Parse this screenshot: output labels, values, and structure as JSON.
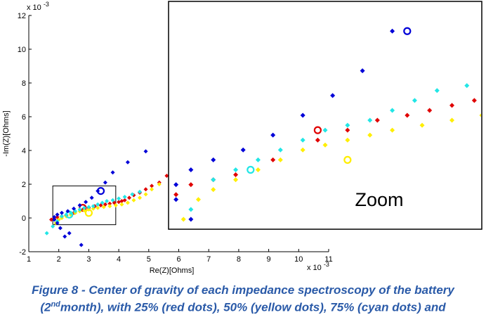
{
  "chart_data": {
    "type": "scatter",
    "xlabel": "Re(Z)[Ohms]",
    "ylabel": "-Im(Z)[Ohms]",
    "x_exponent": "x 10",
    "x_exponent_power": "-3",
    "y_exponent": "x 10",
    "y_exponent_power": "-3",
    "xlim": [
      1,
      11
    ],
    "ylim": [
      -2,
      12
    ],
    "x_ticks": [
      "1",
      "2",
      "3",
      "4",
      "5",
      "6",
      "7",
      "8",
      "9",
      "10",
      "11"
    ],
    "y_ticks": [
      "-2",
      "0",
      "2",
      "4",
      "6",
      "8",
      "10",
      "12"
    ],
    "inset_label": "Zoom",
    "colors": {
      "red": "#e00000",
      "yellow": "#ffee00",
      "cyan": "#22e6e6",
      "blue": "#0000d8"
    },
    "series": [
      {
        "name": "25% (red dots)",
        "color": "#e00000",
        "x": [
          1.75,
          1.85,
          1.95,
          2.1,
          2.25,
          2.5,
          2.8,
          3.0,
          3.2,
          3.4,
          3.55,
          3.7,
          3.85,
          4.0,
          4.1,
          4.2,
          4.35,
          4.5,
          4.7,
          4.9,
          5.1,
          5.35,
          5.6
        ],
        "y": [
          -0.1,
          -0.05,
          0.05,
          0.1,
          0.15,
          0.3,
          0.5,
          0.6,
          0.7,
          0.75,
          0.8,
          0.85,
          0.9,
          0.95,
          1.0,
          1.05,
          1.2,
          1.35,
          1.5,
          1.7,
          1.9,
          2.1,
          2.5
        ],
        "center": [
          2.8,
          0.6
        ]
      },
      {
        "name": "50% (yellow dots)",
        "color": "#ffee00",
        "x": [
          1.9,
          2.0,
          2.1,
          2.25,
          2.4,
          2.55,
          2.7,
          2.85,
          3.0,
          3.15,
          3.3,
          3.5,
          3.7,
          3.9,
          4.1,
          4.3,
          4.5,
          4.7,
          4.9,
          5.1,
          5.35
        ],
        "y": [
          -0.3,
          -0.1,
          0.0,
          0.1,
          0.2,
          0.3,
          0.4,
          0.45,
          0.5,
          0.55,
          0.6,
          0.65,
          0.7,
          0.75,
          0.8,
          0.9,
          1.05,
          1.2,
          1.4,
          1.7,
          2.0
        ],
        "center": [
          3.0,
          0.3
        ]
      },
      {
        "name": "75% (cyan dots)",
        "color": "#22e6e6",
        "x": [
          1.6,
          1.8,
          1.95,
          2.1,
          2.25,
          2.4,
          2.55,
          2.7,
          2.85,
          3.0,
          3.15,
          3.3,
          3.45,
          3.6,
          3.8,
          4.0,
          4.2,
          4.45,
          4.7
        ],
        "y": [
          -0.9,
          -0.5,
          -0.2,
          0.1,
          0.2,
          0.3,
          0.4,
          0.5,
          0.6,
          0.65,
          0.7,
          0.8,
          0.9,
          1.0,
          1.05,
          1.15,
          1.25,
          1.4,
          1.55
        ],
        "center": [
          2.35,
          0.2
        ]
      },
      {
        "name": "blue dots",
        "color": "#0000d8",
        "x": [
          2.2,
          2.35,
          2.05,
          1.95,
          1.85,
          1.85,
          1.95,
          2.1,
          2.3,
          2.5,
          2.7,
          2.9,
          3.1,
          3.3,
          3.55,
          3.8,
          4.3,
          4.9,
          2.75
        ],
        "y": [
          -1.1,
          -0.9,
          -0.6,
          -0.3,
          -0.1,
          0.05,
          0.2,
          0.3,
          0.4,
          0.55,
          0.75,
          0.95,
          1.2,
          1.6,
          2.1,
          2.7,
          3.3,
          3.95,
          -1.6
        ],
        "center": [
          3.4,
          1.6
        ]
      }
    ]
  },
  "caption": {
    "line1": "Figure 8 - Center of gravity of each impedance spectroscopy of the battery",
    "line2_start": "(2",
    "line2_sup": "nd",
    "line2_rest": "month), with 25% (red dots), 50% (yellow dots), 75% (cyan dots) and"
  }
}
